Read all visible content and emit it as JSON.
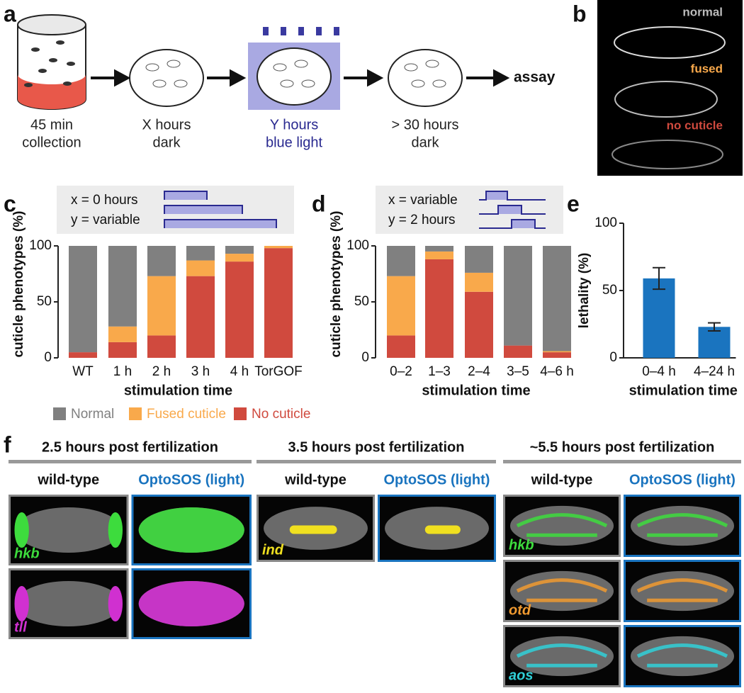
{
  "panel_labels": [
    "a",
    "b",
    "c",
    "d",
    "e",
    "f"
  ],
  "schematic": {
    "steps": [
      [
        "45 min",
        "collection"
      ],
      [
        "X hours",
        "dark"
      ],
      [
        "Y hours",
        "blue light"
      ],
      [
        "> 30 hours",
        "dark"
      ]
    ],
    "end": "assay"
  },
  "phenotypes": [
    "normal",
    "fused",
    "no cuticle"
  ],
  "chart_data": [
    {
      "type": "stacked_bar",
      "inset": [
        "x = 0 hours",
        "y = variable"
      ],
      "categories": [
        "WT",
        "1 h",
        "2 h",
        "3 h",
        "4 h",
        "TorGOF"
      ],
      "series": [
        {
          "name": "Normal",
          "color": "#808080",
          "values": [
            95,
            72,
            27,
            13,
            7,
            0
          ]
        },
        {
          "name": "Fused cuticle",
          "color": "#f9a94b",
          "values": [
            0,
            14,
            53,
            14,
            7,
            2
          ]
        },
        {
          "name": "No cuticle",
          "color": "#d04a3e",
          "values": [
            5,
            14,
            20,
            73,
            86,
            98
          ]
        }
      ],
      "ylim": [
        0,
        100
      ],
      "yticks": [
        0,
        50,
        100
      ],
      "ylabel": "cuticle phenotypes (%)",
      "xlabel": "stimulation time"
    },
    {
      "type": "stacked_bar",
      "inset": [
        "x = variable",
        "y = 2 hours"
      ],
      "categories": [
        "0–2",
        "1–3",
        "2–4",
        "3–5",
        "4–6 h"
      ],
      "series": [
        {
          "name": "Normal",
          "color": "#808080",
          "values": [
            27,
            5,
            24,
            89,
            94
          ]
        },
        {
          "name": "Fused cuticle",
          "color": "#f9a94b",
          "values": [
            53,
            7,
            17,
            0,
            1
          ]
        },
        {
          "name": "No cuticle",
          "color": "#d04a3e",
          "values": [
            20,
            88,
            59,
            11,
            5
          ]
        }
      ],
      "ylim": [
        0,
        100
      ],
      "yticks": [
        0,
        50,
        100
      ],
      "ylabel": "cuticle phenotypes (%)",
      "xlabel": "stimulation time"
    },
    {
      "type": "bar",
      "categories": [
        "0–4 h",
        "4–24 h"
      ],
      "values": [
        59,
        23
      ],
      "errors": [
        8,
        3
      ],
      "color": "#1a74bf",
      "ylim": [
        0,
        100
      ],
      "yticks": [
        0,
        50,
        100
      ],
      "ylabel": "lethality (%)",
      "xlabel": "stimulation time"
    }
  ],
  "expression": {
    "conditions": [
      "wild-type",
      "OptoSOS (light)"
    ],
    "groups": [
      {
        "title": "2.5 hours post fertilization",
        "genes": [
          {
            "name": "hkb",
            "color": "#3ddc3d"
          },
          {
            "name": "tll",
            "color": "#d030d0"
          }
        ]
      },
      {
        "title": "3.5 hours post fertilization",
        "genes": [
          {
            "name": "ind",
            "color": "#f0e020"
          }
        ]
      },
      {
        "title": "~5.5 hours post fertilization",
        "genes": [
          {
            "name": "hkb",
            "color": "#3ddc3d"
          },
          {
            "name": "otd",
            "color": "#f09a30"
          },
          {
            "name": "aos",
            "color": "#30d0d8"
          }
        ]
      }
    ]
  }
}
